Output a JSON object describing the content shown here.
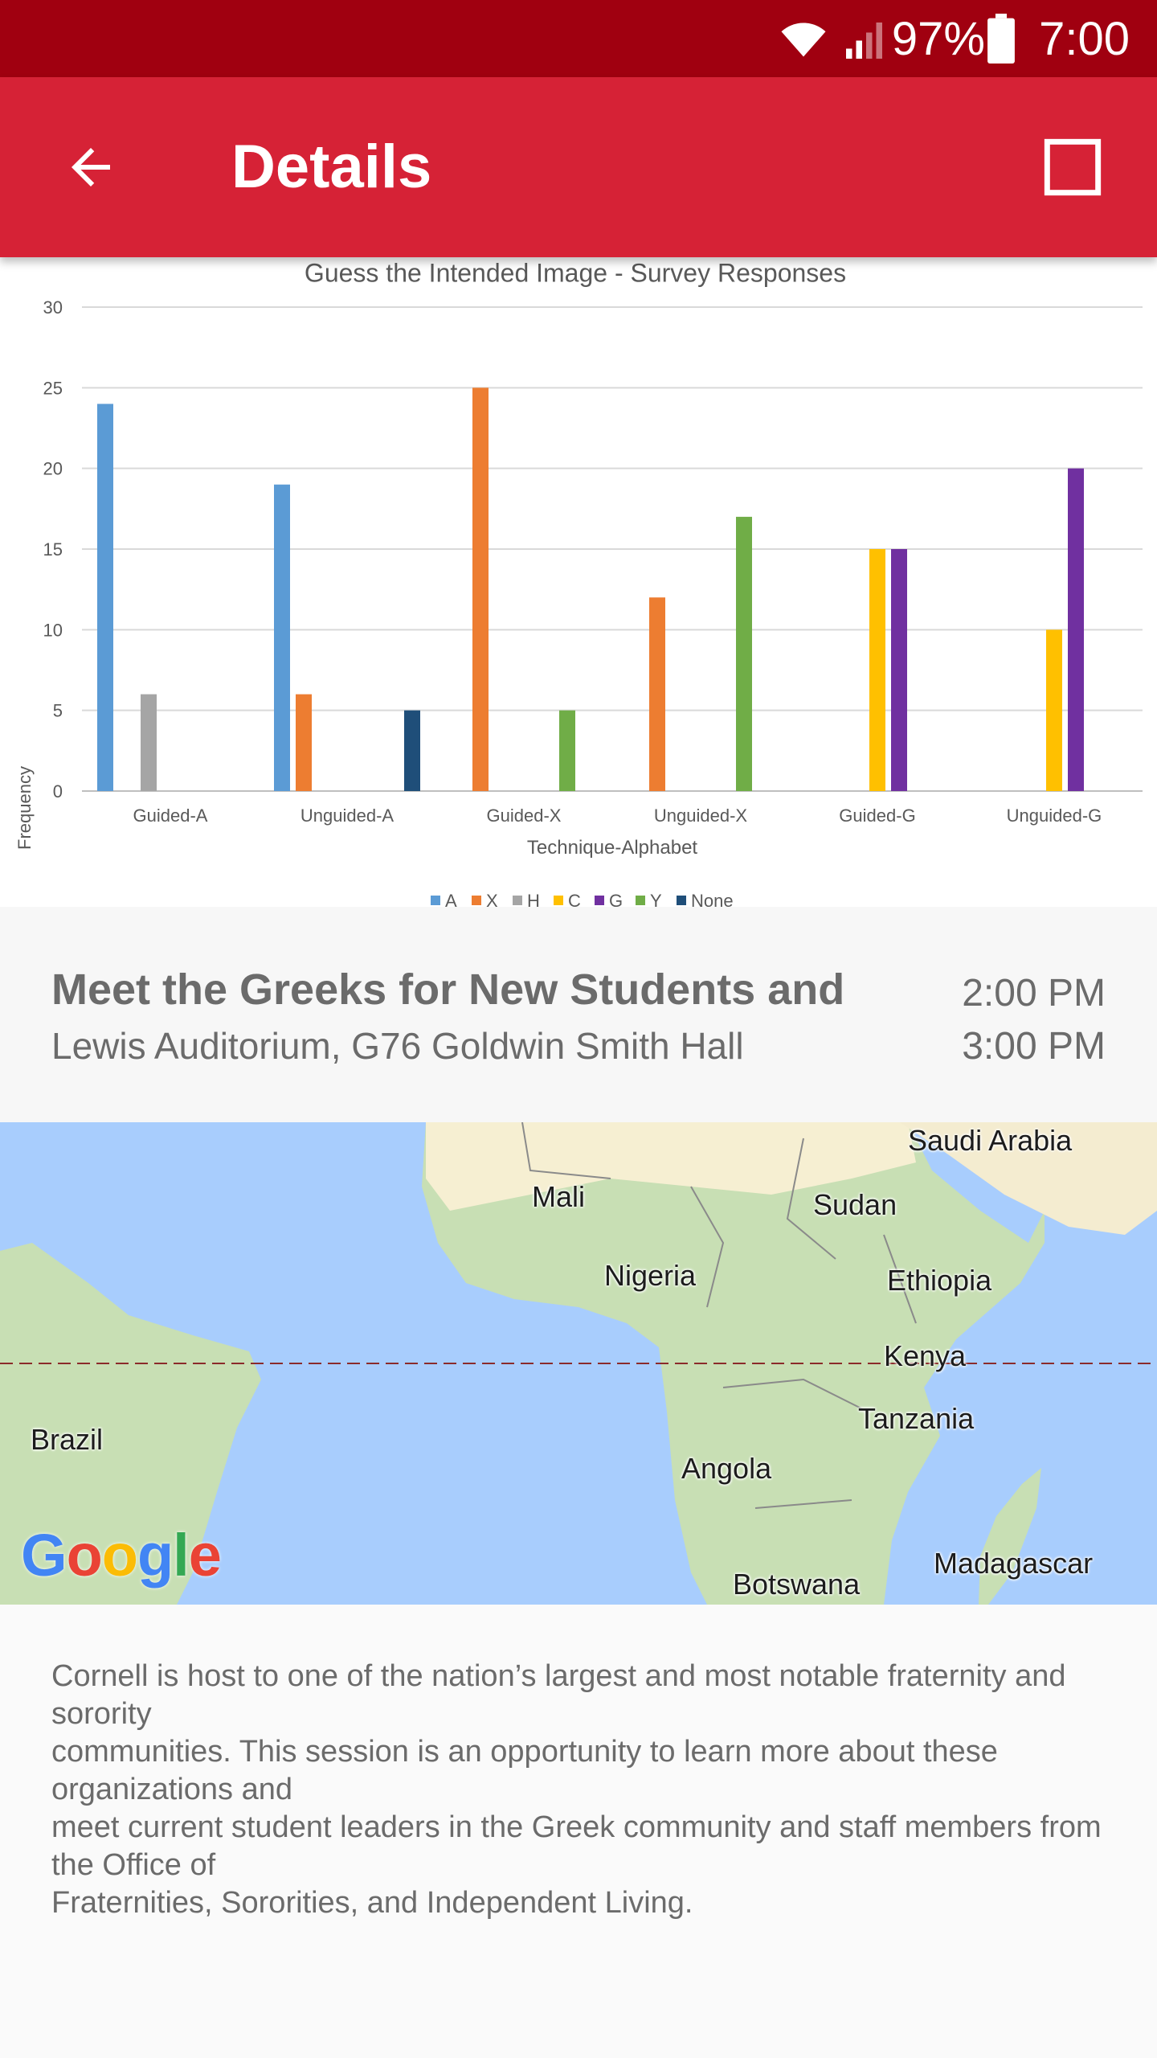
{
  "status_bar": {
    "battery_percent": "97%",
    "time": "7:00",
    "icons": [
      "wifi-icon",
      "cell-signal-icon",
      "battery-icon"
    ]
  },
  "app_bar": {
    "title": "Details",
    "back_icon": "arrow-back-icon",
    "action_icon": "square-outline-icon",
    "color": "#d62236"
  },
  "chart_data": {
    "type": "bar",
    "title": "Guess the Intended Image - Survey Responses",
    "xlabel": "Technique-Alphabet",
    "ylabel": "Frequency",
    "ylim": [
      0,
      30
    ],
    "yticks": [
      0,
      5,
      10,
      15,
      20,
      25,
      30
    ],
    "grid": true,
    "legend_position": "bottom",
    "categories": [
      "Guided-A",
      "Unguided-A",
      "Guided-X",
      "Unguided-X",
      "Guided-G",
      "Unguided-G"
    ],
    "series": [
      {
        "name": "A",
        "color": "#5b9bd5",
        "values": [
          24,
          19,
          0,
          0,
          0,
          0
        ]
      },
      {
        "name": "X",
        "color": "#ed7d31",
        "values": [
          0,
          6,
          25,
          12,
          0,
          0
        ]
      },
      {
        "name": "H",
        "color": "#a5a5a5",
        "values": [
          6,
          0,
          0,
          0,
          0,
          0
        ]
      },
      {
        "name": "C",
        "color": "#ffc000",
        "values": [
          0,
          0,
          0,
          0,
          15,
          10
        ]
      },
      {
        "name": "G",
        "color": "#7030a0",
        "values": [
          0,
          0,
          0,
          0,
          15,
          20
        ]
      },
      {
        "name": "Y",
        "color": "#70ad47",
        "values": [
          0,
          0,
          5,
          17,
          0,
          0
        ]
      },
      {
        "name": "None",
        "color": "#1f4e79",
        "values": [
          0,
          5,
          0,
          0,
          0,
          0
        ]
      }
    ]
  },
  "event": {
    "title": "Meet the Greeks for New Students and",
    "location": "Lewis Auditorium, G76 Goldwin Smith Hall",
    "start_time": "2:00 PM",
    "end_time": "3:00 PM"
  },
  "map": {
    "labels": [
      "Saudi Arabia",
      "Mali",
      "Sudan",
      "Nigeria",
      "Ethiopia",
      "Kenya",
      "Tanzania",
      "Brazil",
      "Angola",
      "Madagascar",
      "Botswana"
    ],
    "attribution": "Google",
    "water_color": "#a8cdfd",
    "land_color": "#c8dfb4"
  },
  "description": {
    "lines": [
      "Cornell is host to one of the nation’s largest and most notable fraternity and sorority",
      "communities. This session is an opportunity to learn more about these organizations and",
      "meet current student leaders in the Greek community and staff members from the Office of",
      "Fraternities, Sororities, and Independent Living."
    ]
  }
}
